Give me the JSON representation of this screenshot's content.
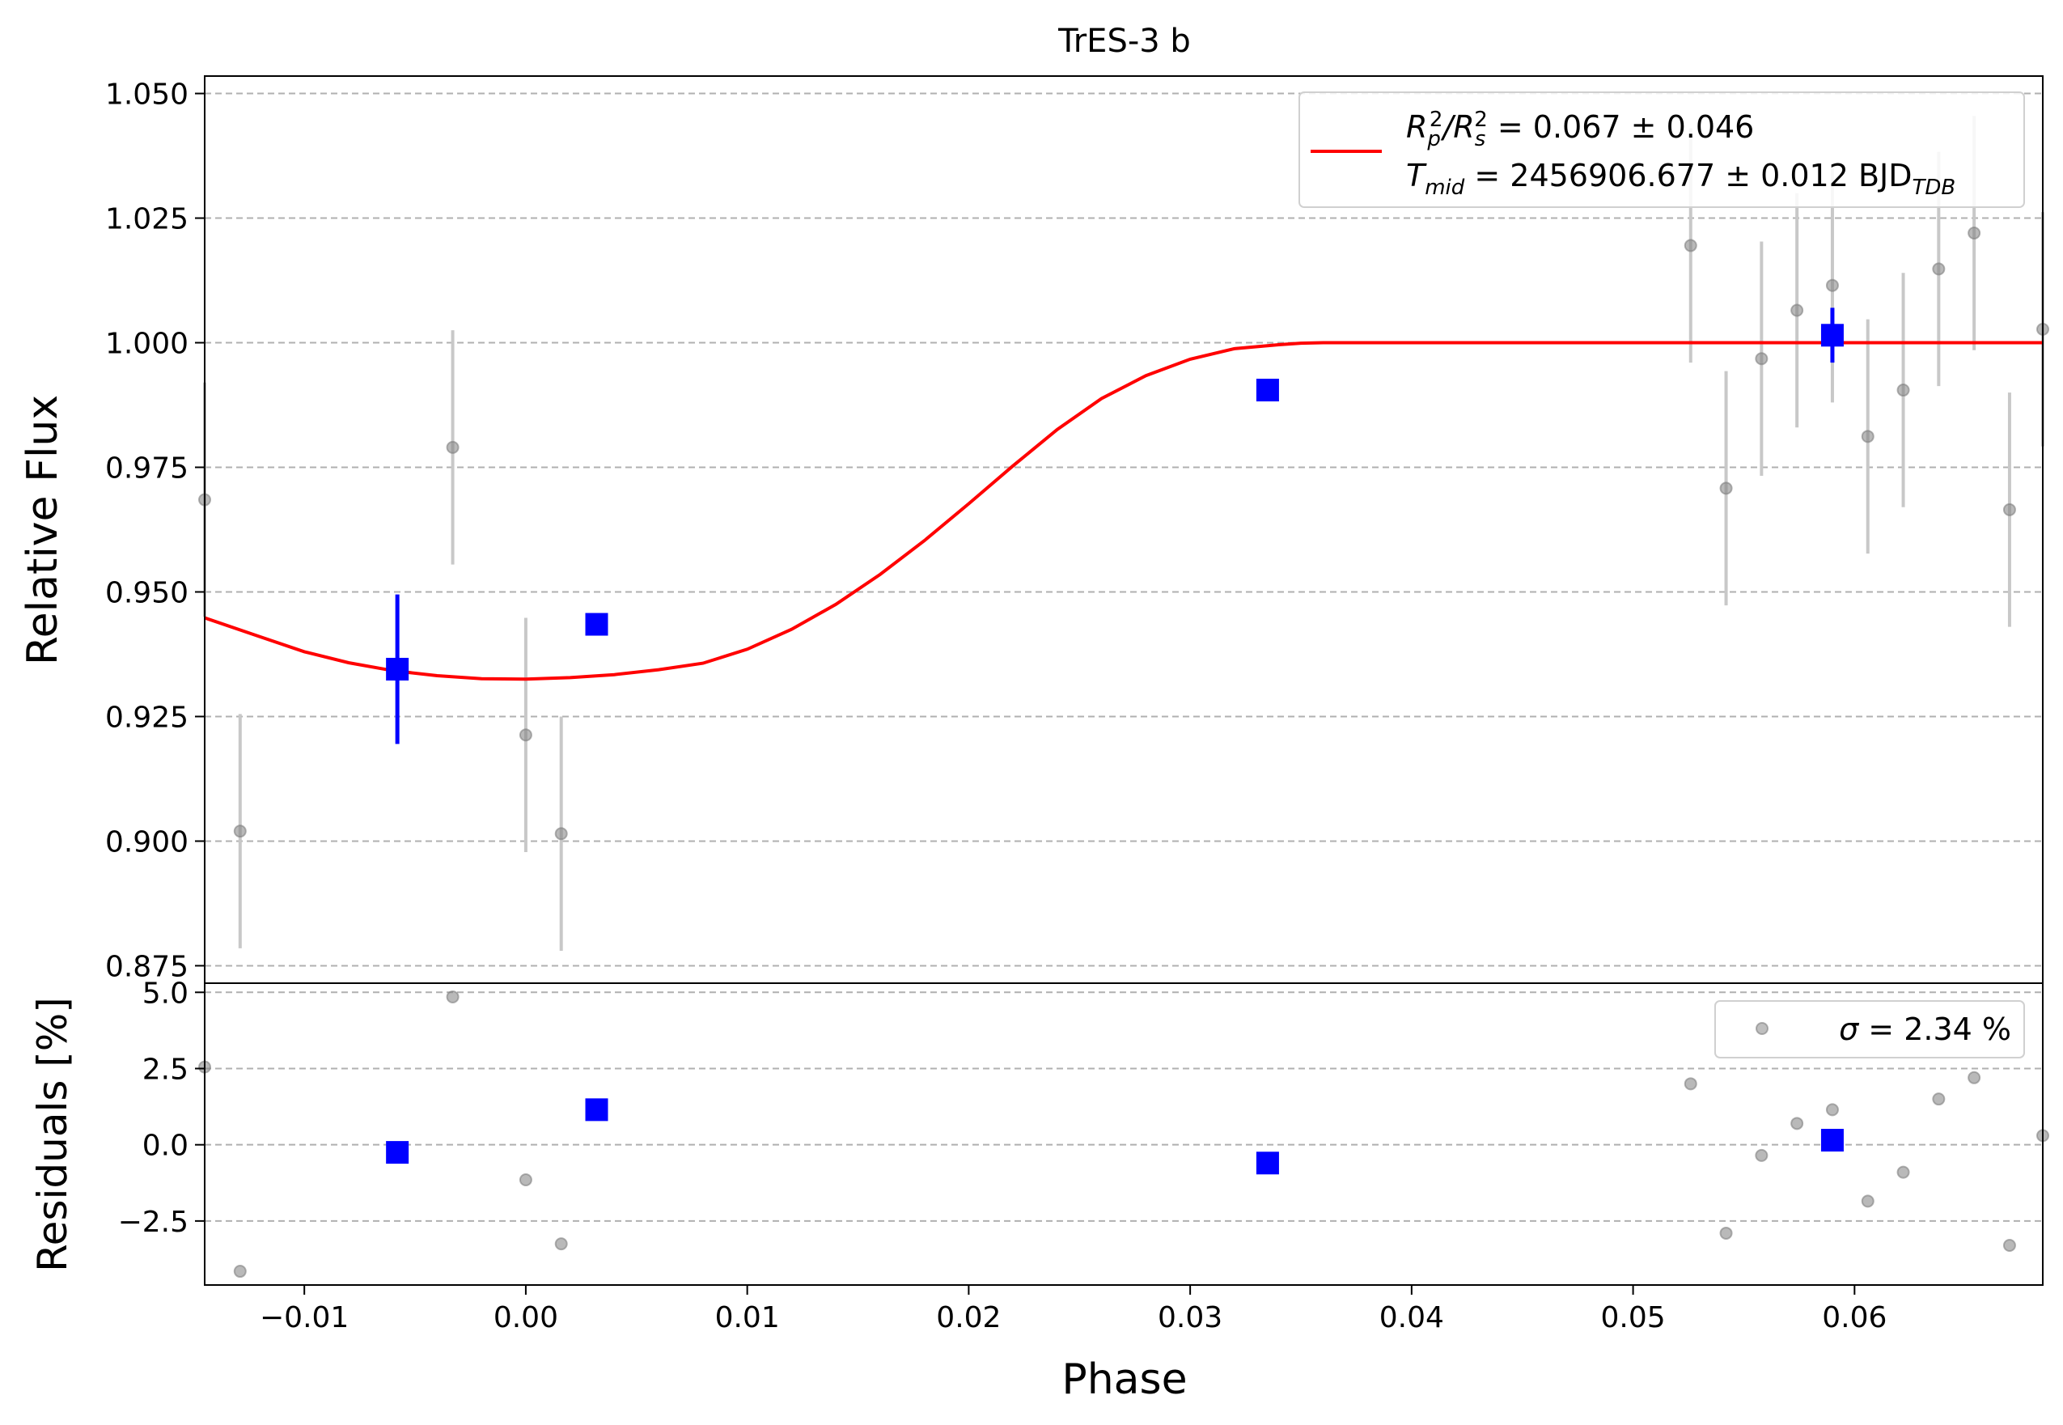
{
  "chart_data": [
    {
      "type": "scatter",
      "title": "TrES-3 b",
      "xlabel": "",
      "ylabel": "Relative Flux",
      "xlim": [
        -0.0145,
        0.0685
      ],
      "ylim": [
        0.8715,
        1.0535
      ],
      "grid": "horizontal-dashed",
      "y_ticks": [
        0.875,
        0.9,
        0.925,
        0.95,
        0.975,
        1.0,
        1.025,
        1.05
      ],
      "y_tick_labels": [
        "0.875",
        "0.900",
        "0.925",
        "0.950",
        "0.975",
        "1.000",
        "1.025",
        "1.050"
      ],
      "legend": {
        "position": "top-right",
        "line1_prefix": "R",
        "line1_sub1": "p",
        "line1_sup1": "2",
        "line1_slash": "/R",
        "line1_sub2": "s",
        "line1_sup2": "2",
        "line1_value": " = 0.067 ± 0.046",
        "line2_prefix": "T",
        "line2_sub": "mid",
        "line2_value": " = 2456906.677 ± 0.012 BJD",
        "line2_unit_sub": "TDB",
        "line_color": "#ff0000"
      },
      "raw_points": {
        "color": "#808080",
        "x": [
          -0.0145,
          -0.0129,
          -0.0033,
          0.0,
          0.0016,
          0.0526,
          0.0542,
          0.0558,
          0.0574,
          0.059,
          0.0606,
          0.0622,
          0.0638,
          0.0654,
          0.067,
          0.0685
        ],
        "y": [
          0.9685,
          0.902,
          0.979,
          0.9213,
          0.9015,
          1.0195,
          0.9708,
          0.9968,
          1.0065,
          1.0115,
          0.9812,
          0.9905,
          1.0148,
          1.022,
          0.9665,
          1.0027
        ],
        "err": [
          0.0235,
          0.0235,
          0.0235,
          0.0235,
          0.0235,
          0.0235,
          0.0235,
          0.0235,
          0.0235,
          0.0235,
          0.0235,
          0.0235,
          0.0235,
          0.0235,
          0.0235,
          0.0235
        ]
      },
      "binned_points": {
        "color": "#0000ff",
        "x": [
          -0.0058,
          0.0032,
          0.0335,
          0.059
        ],
        "y": [
          0.9345,
          0.9435,
          0.9905,
          1.0015
        ],
        "err": [
          0.015,
          0.0,
          0.0,
          0.0055
        ]
      },
      "model": {
        "color": "#ff0000",
        "x": [
          -0.0145,
          -0.012,
          -0.01,
          -0.008,
          -0.006,
          -0.004,
          -0.002,
          0.0,
          0.002,
          0.004,
          0.006,
          0.008,
          0.01,
          0.012,
          0.014,
          0.016,
          0.018,
          0.02,
          0.022,
          0.024,
          0.026,
          0.028,
          0.03,
          0.032,
          0.034,
          0.035,
          0.036,
          0.037,
          0.04,
          0.05,
          0.06,
          0.0685
        ],
        "y": [
          0.9448,
          0.941,
          0.938,
          0.9358,
          0.9342,
          0.9332,
          0.9326,
          0.9325,
          0.9328,
          0.9334,
          0.9344,
          0.9357,
          0.9385,
          0.9425,
          0.9475,
          0.9535,
          0.9603,
          0.9677,
          0.9753,
          0.9826,
          0.9888,
          0.9934,
          0.9967,
          0.9988,
          0.9996,
          0.9999,
          1.0,
          1.0,
          1.0,
          1.0,
          1.0,
          1.0
        ]
      }
    },
    {
      "type": "scatter",
      "title": "",
      "xlabel": "Phase",
      "ylabel": "Residuals [%]",
      "xlim": [
        -0.0145,
        0.0685
      ],
      "ylim": [
        -4.6,
        5.3
      ],
      "grid": "horizontal-dashed",
      "x_ticks": [
        -0.01,
        0.0,
        0.01,
        0.02,
        0.03,
        0.04,
        0.05,
        0.06
      ],
      "x_tick_labels": [
        "−0.01",
        "0.00",
        "0.01",
        "0.02",
        "0.03",
        "0.04",
        "0.05",
        "0.06"
      ],
      "y_ticks": [
        -2.5,
        0.0,
        2.5,
        5.0
      ],
      "y_tick_labels": [
        "−2.5",
        "0.0",
        "2.5",
        "5.0"
      ],
      "legend": {
        "position": "top-right",
        "sigma_symbol": "σ",
        "sigma_value": " = 2.34 %"
      },
      "raw_points": {
        "color": "#808080",
        "x": [
          -0.0145,
          -0.0129,
          -0.0033,
          0.0,
          0.0016,
          0.0526,
          0.0542,
          0.0558,
          0.0574,
          0.059,
          0.0606,
          0.0622,
          0.0638,
          0.0654,
          0.067,
          0.0685
        ],
        "y": [
          2.55,
          -4.15,
          4.85,
          -1.15,
          -3.25,
          2.0,
          -2.9,
          -0.35,
          0.7,
          1.15,
          -1.85,
          -0.9,
          1.5,
          2.2,
          -3.3,
          0.3
        ]
      },
      "binned_points": {
        "color": "#0000ff",
        "x": [
          -0.0058,
          0.0032,
          0.0335,
          0.059
        ],
        "y": [
          -0.25,
          1.15,
          -0.6,
          0.15
        ]
      }
    }
  ]
}
